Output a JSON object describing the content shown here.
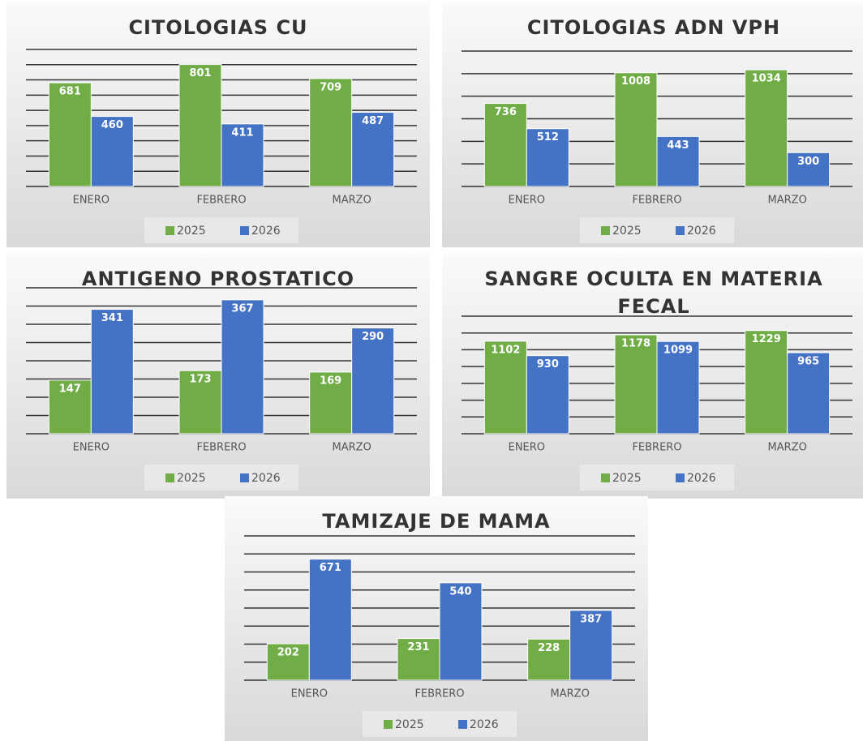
{
  "chart_data": [
    {
      "type": "bar",
      "title": "CITOLOGIAS CU",
      "categories": [
        "ENERO",
        "FEBRERO",
        "MARZO"
      ],
      "series": [
        {
          "name": "2025",
          "color": "#70ad47",
          "values": [
            681,
            801,
            709
          ]
        },
        {
          "name": "2026",
          "color": "#4472c4",
          "values": [
            460,
            411,
            487
          ]
        }
      ],
      "ylim": [
        0,
        900
      ],
      "yticks": [
        0,
        100,
        200,
        300,
        400,
        500,
        600,
        700,
        800,
        900
      ],
      "grid": true,
      "legend": "bottom"
    },
    {
      "type": "bar",
      "title": "CITOLOGIAS ADN VPH",
      "categories": [
        "ENERO",
        "FEBRERO",
        "MARZO"
      ],
      "series": [
        {
          "name": "2025",
          "color": "#70ad47",
          "values": [
            736,
            1008,
            1034
          ]
        },
        {
          "name": "2026",
          "color": "#4472c4",
          "values": [
            512,
            443,
            300
          ]
        }
      ],
      "ylim": [
        0,
        1200
      ],
      "yticks": [
        0,
        200,
        400,
        600,
        800,
        1000,
        1200
      ],
      "grid": true,
      "legend": "bottom"
    },
    {
      "type": "bar",
      "title": "ANTIGENO PROSTATICO",
      "categories": [
        "ENERO",
        "FEBRERO",
        "MARZO"
      ],
      "series": [
        {
          "name": "2025",
          "color": "#70ad47",
          "values": [
            147,
            173,
            169
          ]
        },
        {
          "name": "2026",
          "color": "#4472c4",
          "values": [
            341,
            367,
            290
          ]
        }
      ],
      "ylim": [
        0,
        400
      ],
      "yticks": [
        0,
        50,
        100,
        150,
        200,
        250,
        300,
        350,
        400
      ],
      "grid": true,
      "legend": "bottom"
    },
    {
      "type": "bar",
      "title": "SANGRE OCULTA EN MATERIA FECAL",
      "categories": [
        "ENERO",
        "FEBRERO",
        "MARZO"
      ],
      "series": [
        {
          "name": "2025",
          "color": "#70ad47",
          "values": [
            1102,
            1178,
            1229
          ]
        },
        {
          "name": "2026",
          "color": "#4472c4",
          "values": [
            930,
            1099,
            965
          ]
        }
      ],
      "ylim": [
        0,
        1400
      ],
      "yticks": [
        0,
        200,
        400,
        600,
        800,
        1000,
        1200,
        1400
      ],
      "grid": true,
      "legend": "bottom"
    },
    {
      "type": "bar",
      "title": "TAMIZAJE DE MAMA",
      "categories": [
        "ENERO",
        "FEBRERO",
        "MARZO"
      ],
      "series": [
        {
          "name": "2025",
          "color": "#70ad47",
          "values": [
            202,
            231,
            228
          ]
        },
        {
          "name": "2026",
          "color": "#4472c4",
          "values": [
            671,
            540,
            387
          ]
        }
      ],
      "ylim": [
        0,
        800
      ],
      "yticks": [
        0,
        100,
        200,
        300,
        400,
        500,
        600,
        700,
        800
      ],
      "grid": true,
      "legend": "bottom"
    }
  ]
}
